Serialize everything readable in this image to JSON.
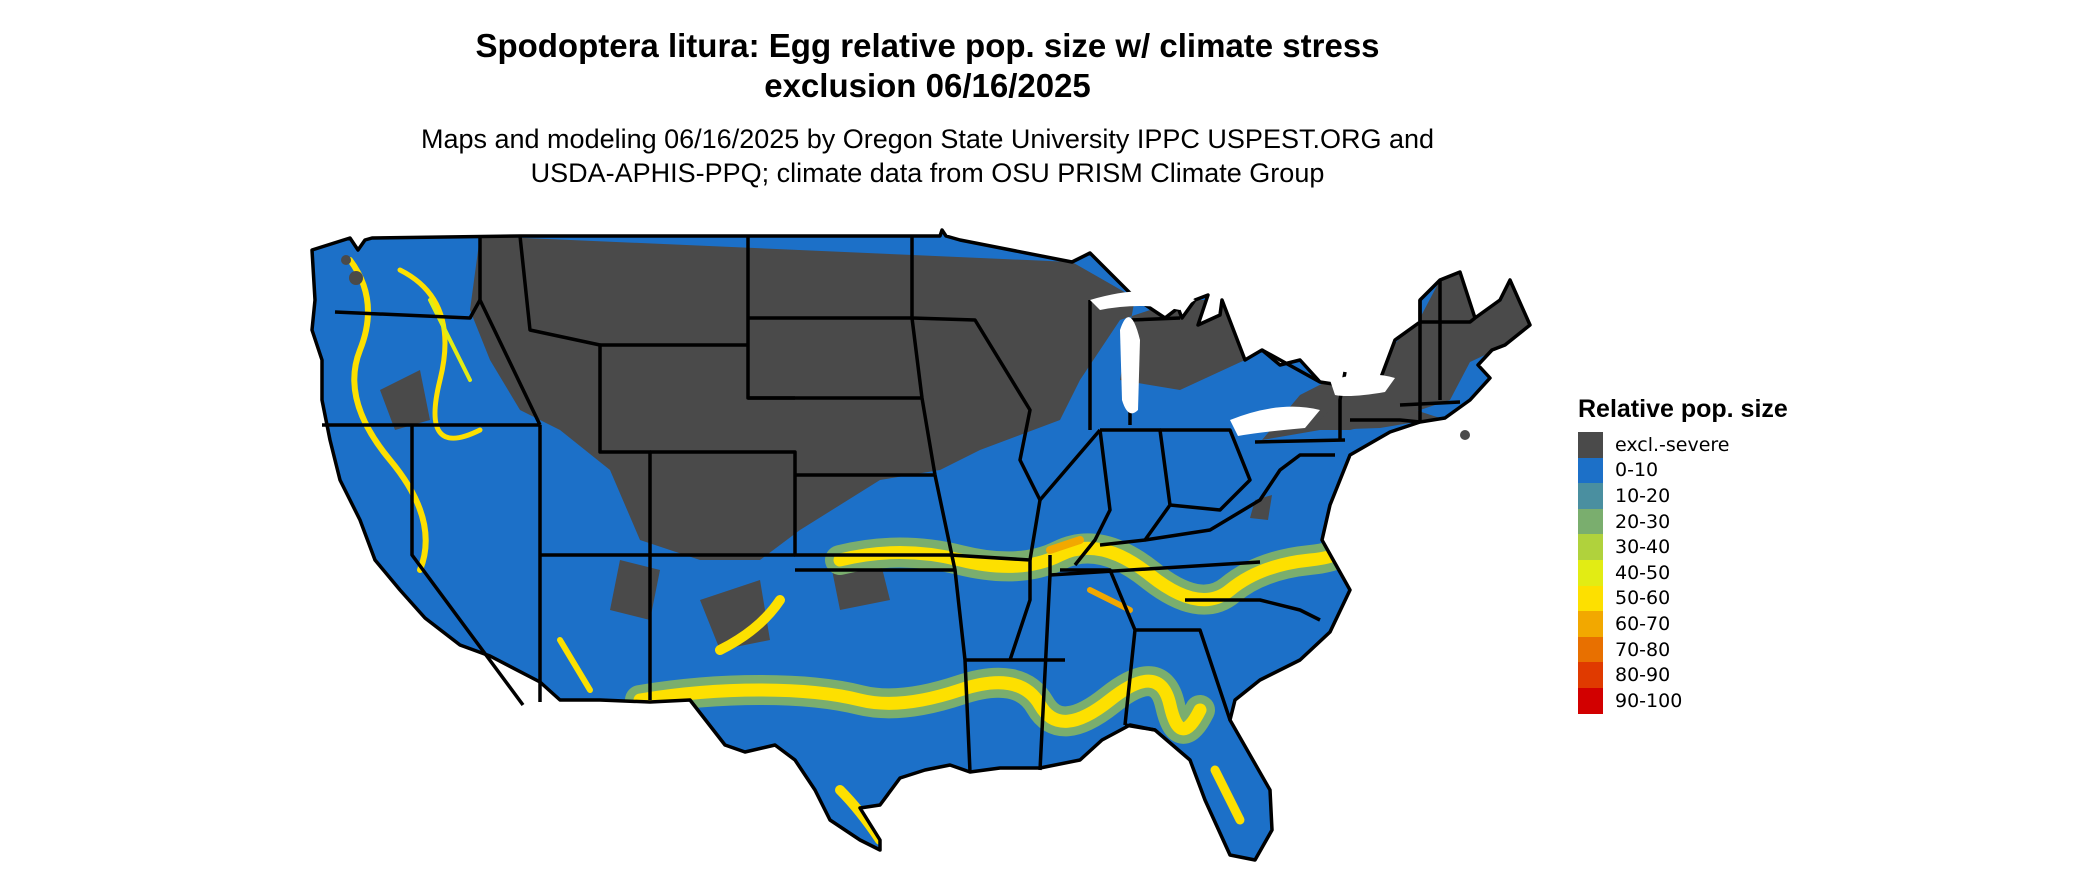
{
  "title": {
    "line1": "Spodoptera litura: Egg relative pop. size w/ climate stress",
    "line2": "exclusion 06/16/2025"
  },
  "subtitle": {
    "line1": "Maps and modeling 06/16/2025 by Oregon State University IPPC USPEST.ORG and",
    "line2": "USDA-APHIS-PPQ; climate data from OSU PRISM Climate Group"
  },
  "legend": {
    "title": "Relative pop. size",
    "items": [
      {
        "label": "excl.-severe",
        "color": "#4a4a4a"
      },
      {
        "label": "0-10",
        "color": "#1c70c8"
      },
      {
        "label": "10-20",
        "color": "#4a8fa0"
      },
      {
        "label": "20-30",
        "color": "#7aae6e"
      },
      {
        "label": "30-40",
        "color": "#b0d23c"
      },
      {
        "label": "40-50",
        "color": "#e2ec14"
      },
      {
        "label": "50-60",
        "color": "#fde000"
      },
      {
        "label": "60-70",
        "color": "#f2a800"
      },
      {
        "label": "70-80",
        "color": "#e87000"
      },
      {
        "label": "80-90",
        "color": "#e03a00"
      },
      {
        "label": "90-100",
        "color": "#d20000"
      }
    ]
  },
  "map": {
    "exclusion_color": "#4a4a4a",
    "low_color": "#1c70c8",
    "high_color": "#fde000",
    "border_color": "#000000"
  }
}
